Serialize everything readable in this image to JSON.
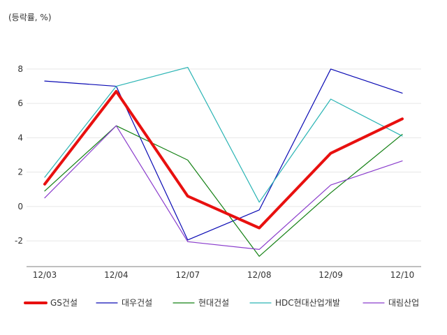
{
  "unit_label": "(등락률, %)",
  "chart_data": {
    "type": "line",
    "categories": [
      "12/03",
      "12/04",
      "12/07",
      "12/08",
      "12/09",
      "12/10"
    ],
    "ylim": [
      -3.5,
      9.5
    ],
    "yticks": [
      -2,
      0,
      2,
      4,
      6,
      8
    ],
    "ytick_labels": [
      "-2",
      "0",
      "2",
      "4",
      "6",
      "8"
    ],
    "grid": true,
    "legend_position": "bottom",
    "series": [
      {
        "name": "GS건설",
        "color": "#e8100f",
        "width": 4,
        "values": [
          1.3,
          6.7,
          0.6,
          -1.25,
          3.1,
          5.1
        ]
      },
      {
        "name": "대우건설",
        "color": "#0a0ab4",
        "width": 1.2,
        "values": [
          7.3,
          7.0,
          -1.95,
          -0.2,
          8.0,
          6.6
        ]
      },
      {
        "name": "현대건설",
        "color": "#138013",
        "width": 1.2,
        "values": [
          0.9,
          4.7,
          2.7,
          -2.9,
          0.8,
          4.2
        ]
      },
      {
        "name": "HDC현대산업개발",
        "color": "#2ab4b4",
        "width": 1.2,
        "values": [
          1.7,
          7.0,
          8.1,
          0.25,
          6.25,
          4.1
        ]
      },
      {
        "name": "대림산업",
        "color": "#8a3ccc",
        "width": 1.2,
        "values": [
          0.5,
          4.7,
          -2.05,
          -2.5,
          1.25,
          2.65
        ]
      }
    ]
  }
}
